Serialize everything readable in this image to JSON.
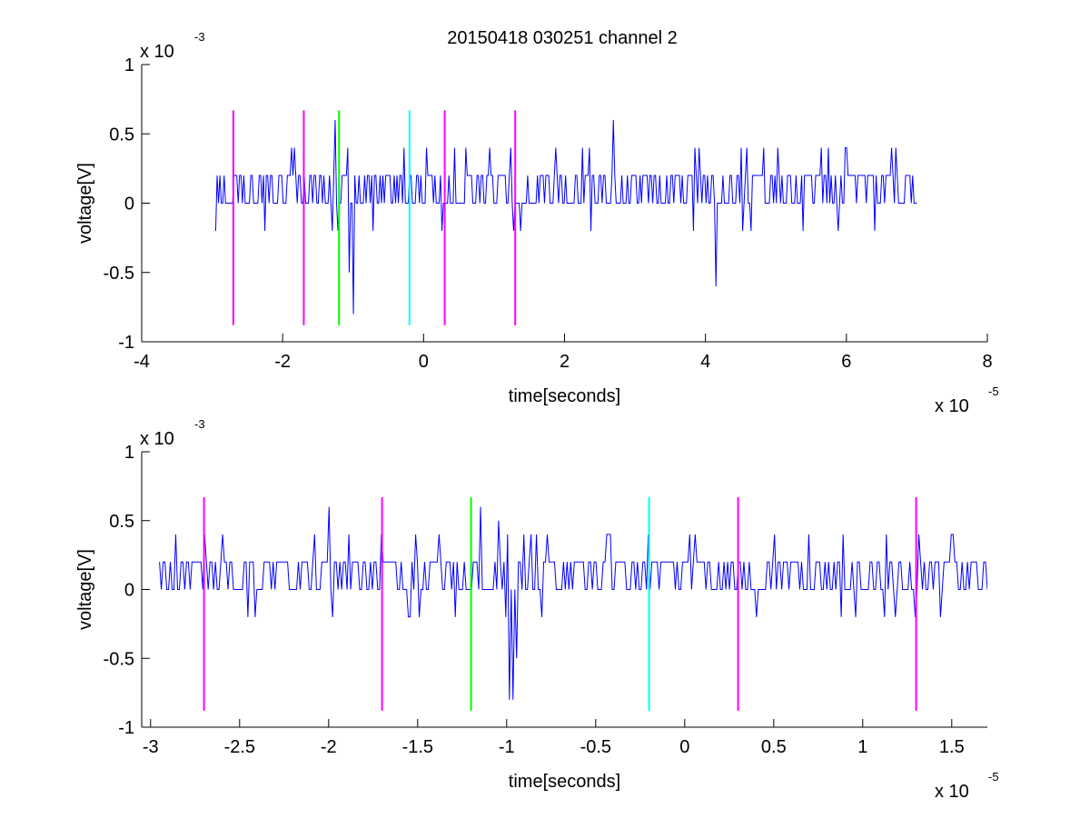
{
  "figure": {
    "title": "20150418 030251 channel 2"
  },
  "chart_data": [
    {
      "type": "line",
      "title": "20150418 030251 channel 2",
      "xlabel": "time[seconds]",
      "ylabel": "voltage[V]",
      "x_scale_label": "x 10",
      "x_scale_exp": "-5",
      "y_scale_label": "x 10",
      "y_scale_exp": "-3",
      "xlim": [
        -4,
        8
      ],
      "ylim": [
        -1,
        1
      ],
      "xticks": [
        -4,
        -2,
        0,
        2,
        4,
        6,
        8
      ],
      "xtick_labels": [
        "-4",
        "-2",
        "0",
        "2",
        "4",
        "6",
        "8"
      ],
      "yticks": [
        -1,
        -0.5,
        0,
        0.5,
        1
      ],
      "ytick_labels": [
        "-1",
        "-0.5",
        "0",
        "0.5",
        "1"
      ],
      "grid": false,
      "series": [
        {
          "color": "#0000ff",
          "x_range": [
            -2.95,
            7.0
          ],
          "samples": 500,
          "levels": [
            0,
            0.2
          ],
          "noise_extremes": [
            0.4,
            -0.2
          ],
          "events": [
            {
              "x": -1.0,
              "y": -0.8
            },
            {
              "x": -1.05,
              "y": -0.5
            },
            {
              "x": -1.25,
              "y": 0.6
            },
            {
              "x": 2.7,
              "y": 0.6
            },
            {
              "x": 4.15,
              "y": -0.6
            }
          ]
        }
      ],
      "markers": [
        {
          "x": -2.7,
          "y": [
            -0.88,
            0.67
          ],
          "color": "#ff00ff"
        },
        {
          "x": -1.7,
          "y": [
            -0.88,
            0.67
          ],
          "color": "#ff00ff"
        },
        {
          "x": -1.2,
          "y": [
            -0.88,
            0.67
          ],
          "color": "#00ff00"
        },
        {
          "x": -0.2,
          "y": [
            -0.88,
            0.67
          ],
          "color": "#00ffff"
        },
        {
          "x": 0.3,
          "y": [
            -0.88,
            0.67
          ],
          "color": "#ff00ff"
        },
        {
          "x": 1.3,
          "y": [
            -0.88,
            0.67
          ],
          "color": "#ff00ff"
        }
      ]
    },
    {
      "type": "line",
      "title": "",
      "xlabel": "time[seconds]",
      "ylabel": "voltage[V]",
      "x_scale_label": "x 10",
      "x_scale_exp": "-5",
      "y_scale_label": "x 10",
      "y_scale_exp": "-3",
      "xlim": [
        -3.05,
        1.7
      ],
      "ylim": [
        -1,
        1
      ],
      "xticks": [
        -3,
        -2.5,
        -2,
        -1.5,
        -1,
        -0.5,
        0,
        0.5,
        1,
        1.5
      ],
      "xtick_labels": [
        "-3",
        "-2.5",
        "-2",
        "-1.5",
        "-1",
        "-0.5",
        "0",
        "0.5",
        "1",
        "1.5"
      ],
      "yticks": [
        -1,
        -0.5,
        0,
        0.5,
        1
      ],
      "ytick_labels": [
        "-1",
        "-0.5",
        "0",
        "0.5",
        "1"
      ],
      "grid": false,
      "series": [
        {
          "color": "#0000ff",
          "x_range": [
            -2.95,
            1.7
          ],
          "samples": 460,
          "levels": [
            0,
            0.2
          ],
          "noise_extremes": [
            0.4,
            -0.2
          ],
          "events": [
            {
              "x": -2.0,
              "y": 0.6
            },
            {
              "x": -1.15,
              "y": 0.6
            },
            {
              "x": -1.05,
              "y": 0.5
            },
            {
              "x": -1.0,
              "y": -0.2
            },
            {
              "x": -0.98,
              "y": -0.8
            },
            {
              "x": -0.96,
              "y": -0.8
            },
            {
              "x": -0.94,
              "y": -0.5
            }
          ]
        }
      ],
      "markers": [
        {
          "x": -2.7,
          "y": [
            -0.88,
            0.67
          ],
          "color": "#ff00ff"
        },
        {
          "x": -1.7,
          "y": [
            -0.88,
            0.67
          ],
          "color": "#ff00ff"
        },
        {
          "x": -1.2,
          "y": [
            -0.88,
            0.67
          ],
          "color": "#00ff00"
        },
        {
          "x": -0.2,
          "y": [
            -0.88,
            0.67
          ],
          "color": "#00ffff"
        },
        {
          "x": 0.3,
          "y": [
            -0.88,
            0.67
          ],
          "color": "#ff00ff"
        },
        {
          "x": 1.3,
          "y": [
            -0.88,
            0.67
          ],
          "color": "#ff00ff"
        }
      ]
    }
  ]
}
